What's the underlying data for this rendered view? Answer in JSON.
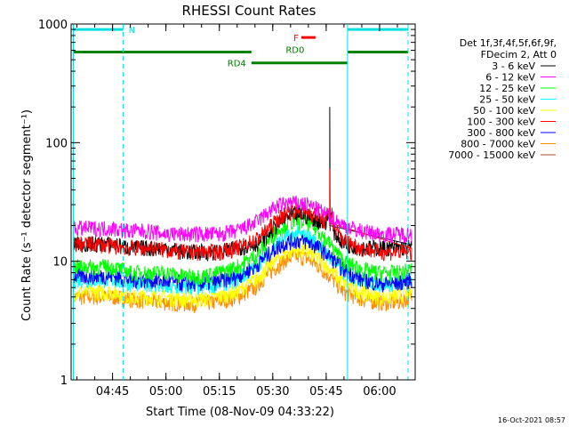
{
  "chart_data": {
    "type": "line",
    "title": "RHESSI Count Rates",
    "xlabel": "Start Time (08-Nov-09 04:33:22)",
    "ylabel": "Count Rate (s⁻¹ detector segment⁻¹)",
    "y_scale": "log",
    "ylim": [
      1,
      1000
    ],
    "xlim": [
      "04:33:22",
      "06:10:00"
    ],
    "x_ticks": [
      "04:45",
      "05:00",
      "05:15",
      "05:30",
      "05:45",
      "06:00"
    ],
    "y_ticks": [
      "1",
      "10",
      "100",
      "1000"
    ],
    "legend_title": [
      "Det 1f,3f,4f,5f,6f,9f,",
      "FDecim 2, Att 0"
    ],
    "legend_placement": "right",
    "timestamp": "16-Oct-2021 08:57",
    "series": [
      {
        "name": "3 - 6 keV",
        "color": "#000000",
        "x": [
          "04:34",
          "04:40",
          "04:45",
          "04:50",
          "04:55",
          "05:00",
          "05:05",
          "05:10",
          "05:15",
          "05:20",
          "05:25",
          "05:28",
          "05:31",
          "05:34",
          "05:37",
          "05:40",
          "05:43",
          "05:45",
          "05:46",
          "05:47",
          "05:50",
          "05:55",
          "06:00",
          "06:05",
          "06:09"
        ],
        "y": [
          14,
          14,
          14,
          13,
          13,
          13,
          12,
          12,
          12,
          13,
          14,
          16,
          20,
          24,
          25,
          24,
          22,
          20,
          200,
          18,
          14,
          13,
          13,
          13,
          13
        ]
      },
      {
        "name": "6 - 12 keV",
        "color": "#ff00ff",
        "x": [
          "04:34",
          "04:40",
          "04:45",
          "04:50",
          "04:55",
          "05:00",
          "05:05",
          "05:10",
          "05:15",
          "05:20",
          "05:25",
          "05:28",
          "05:31",
          "05:34",
          "05:37",
          "05:40",
          "05:43",
          "05:46",
          "05:50",
          "05:55",
          "06:00",
          "06:05",
          "06:09"
        ],
        "y": [
          19,
          19,
          19,
          18,
          18,
          17,
          17,
          17,
          17,
          18,
          21,
          25,
          29,
          31,
          31,
          30,
          27,
          24,
          20,
          18,
          17,
          17,
          17
        ]
      },
      {
        "name": "12 - 25 keV",
        "color": "#00ff00",
        "x": [
          "04:34",
          "04:40",
          "04:45",
          "04:50",
          "04:55",
          "05:00",
          "05:05",
          "05:10",
          "05:15",
          "05:20",
          "05:25",
          "05:28",
          "05:31",
          "05:34",
          "05:37",
          "05:40",
          "05:43",
          "05:46",
          "05:50",
          "05:55",
          "06:00",
          "06:05",
          "06:09"
        ],
        "y": [
          9,
          9,
          9,
          8,
          8,
          8,
          7.5,
          7.5,
          8,
          9,
          11,
          14,
          18,
          21,
          22,
          21,
          18,
          14,
          10,
          8.5,
          8,
          8,
          8.5
        ]
      },
      {
        "name": "25 - 50 keV",
        "color": "#00ffff",
        "x": [
          "04:34",
          "04:40",
          "04:45",
          "04:50",
          "04:55",
          "05:00",
          "05:05",
          "05:10",
          "05:15",
          "05:20",
          "05:25",
          "05:28",
          "05:31",
          "05:34",
          "05:37",
          "05:40",
          "05:43",
          "05:46",
          "05:50",
          "05:55",
          "06:00",
          "06:05",
          "06:09"
        ],
        "y": [
          7,
          7,
          7,
          6.5,
          6.5,
          6,
          6,
          6,
          6.5,
          7,
          9,
          11,
          14,
          16,
          17,
          16,
          14,
          11,
          8,
          7,
          6.5,
          6.5,
          7
        ]
      },
      {
        "name": "50 - 100 keV",
        "color": "#ffff00",
        "x": [
          "04:34",
          "04:40",
          "04:45",
          "04:50",
          "04:55",
          "05:00",
          "05:05",
          "05:10",
          "05:15",
          "05:20",
          "05:25",
          "05:28",
          "05:31",
          "05:34",
          "05:37",
          "05:40",
          "05:43",
          "05:46",
          "05:50",
          "05:55",
          "06:00",
          "06:05",
          "06:09"
        ],
        "y": [
          5.5,
          5.5,
          5.5,
          5,
          5,
          5,
          4.8,
          4.8,
          5,
          5.5,
          7,
          8.5,
          10.5,
          12,
          12.5,
          12,
          10.5,
          8.5,
          6.5,
          5.5,
          5,
          5,
          5.5
        ]
      },
      {
        "name": "100 - 300 keV",
        "color": "#ff0000",
        "x": [
          "04:34",
          "04:40",
          "04:45",
          "04:50",
          "04:55",
          "05:00",
          "05:05",
          "05:10",
          "05:15",
          "05:20",
          "05:25",
          "05:28",
          "05:31",
          "05:34",
          "05:37",
          "05:40",
          "05:43",
          "05:45",
          "05:46",
          "05:47",
          "05:50",
          "05:55",
          "06:00",
          "06:05",
          "06:09"
        ],
        "y": [
          14,
          14,
          13.5,
          13,
          13,
          12.5,
          12,
          12,
          12,
          13,
          15,
          18,
          22,
          26,
          27,
          26,
          24,
          21,
          60,
          19,
          15,
          13,
          12,
          12,
          12
        ]
      },
      {
        "name": "300 - 800 keV",
        "color": "#0000ff",
        "x": [
          "04:34",
          "04:40",
          "04:45",
          "04:50",
          "04:55",
          "05:00",
          "05:05",
          "05:10",
          "05:15",
          "05:20",
          "05:25",
          "05:28",
          "05:31",
          "05:34",
          "05:37",
          "05:40",
          "05:43",
          "05:46",
          "05:50",
          "05:55",
          "06:00",
          "06:05",
          "06:09"
        ],
        "y": [
          7.5,
          7.5,
          7.5,
          7,
          7,
          6.8,
          6.5,
          6.5,
          6.8,
          7.5,
          9,
          11,
          13,
          14.5,
          15,
          14.5,
          13,
          11,
          8.5,
          7,
          6.5,
          6.5,
          7
        ]
      },
      {
        "name": "800 - 7000 keV",
        "color": "#ff8c00",
        "x": [
          "04:34",
          "04:40",
          "04:45",
          "04:50",
          "04:55",
          "05:00",
          "05:05",
          "05:10",
          "05:15",
          "05:20",
          "05:25",
          "05:28",
          "05:31",
          "05:34",
          "05:37",
          "05:40",
          "05:43",
          "05:46",
          "05:50",
          "05:55",
          "06:00",
          "06:05",
          "06:09"
        ],
        "y": [
          5,
          5,
          5,
          4.8,
          4.6,
          4.5,
          4.4,
          4.4,
          4.6,
          5,
          6,
          7.5,
          9,
          10.5,
          11,
          10.5,
          9,
          7.5,
          5.5,
          4.8,
          4.5,
          4.5,
          5
        ]
      },
      {
        "name": "7000 - 15000 keV",
        "color": "#a0522d",
        "x": [],
        "y": []
      }
    ],
    "vertical_lines": {
      "color": "#00e0e0",
      "solid": [
        "04:34",
        "05:51"
      ],
      "dashed": [
        "04:48",
        "06:08"
      ]
    },
    "state_bars": [
      {
        "label": "N",
        "color": "#00e0e0",
        "x": [
          "04:34",
          "04:48"
        ],
        "y": 900
      },
      {
        "label": "",
        "color": "#00e0e0",
        "x": [
          "05:51",
          "06:08"
        ],
        "y": 900
      },
      {
        "label": "",
        "color": "#008000",
        "x": [
          "04:34",
          "05:24"
        ],
        "y": 580
      },
      {
        "label": "RD4",
        "color": "#008000",
        "x": [
          "05:24",
          "05:51"
        ],
        "y": 470
      },
      {
        "label": "",
        "color": "#008000",
        "x": [
          "05:51",
          "06:08"
        ],
        "y": 580
      },
      {
        "label": "RD0",
        "color": "#008000",
        "x": [
          "05:35",
          "05:35"
        ],
        "y": 580
      },
      {
        "label": "F",
        "color": "#ff0000",
        "x": [
          "05:38",
          "05:42"
        ],
        "y": 770
      }
    ]
  }
}
